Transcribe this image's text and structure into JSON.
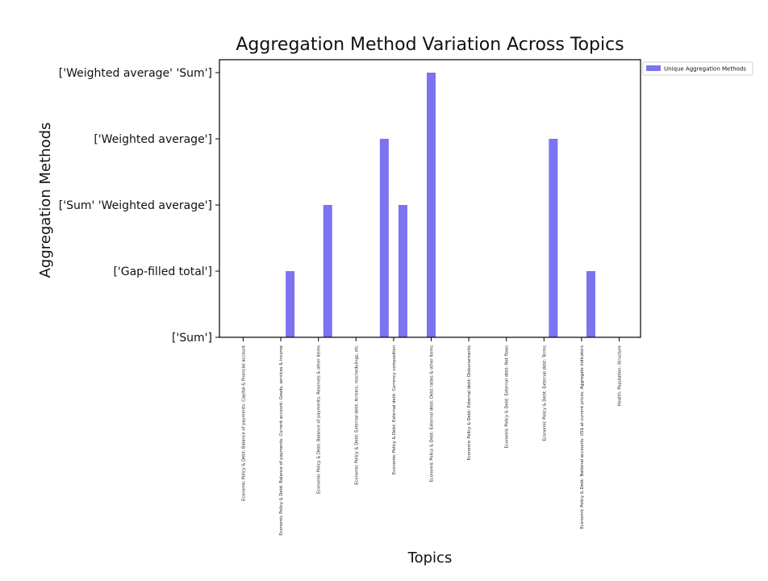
{
  "chart_data": {
    "type": "bar",
    "title": "Aggregation Method Variation Across Topics",
    "xlabel": "Topics",
    "ylabel": "Aggregation Methods",
    "y_categories": [
      "['Sum']",
      "['Gap-filled total']",
      "['Sum' 'Weighted average']",
      "['Weighted average']",
      "['Weighted average' 'Sum']"
    ],
    "categories": [
      "Economic Policy & Debt: Balance of payments: Capital & financial account",
      "Economic Policy & Debt: Balance of payments: Current account: Goods, services & income",
      "Economic Policy & Debt: Balance of payments: Reserves & other items",
      "Economic Policy & Debt: External debt: Arrears, reschedulings, etc",
      "Economic Policy & Debt: External debt: Currency composition",
      "Economic Policy & Debt: External debt: Debt ratios & other items",
      "Economic Policy & Debt: External debt: Disbursements",
      "Economic Policy & Debt: External debt: Net flows",
      "Economic Policy & Debt: External debt: Terms",
      "Economic Policy & Debt: National accounts: US$ at current prices: Aggregate indicators",
      "Health: Population: Structure"
    ],
    "series": [
      {
        "name": "Unique Aggregation Methods",
        "color": "#7b73f0",
        "values": [
          [
            "['Sum']"
          ],
          [
            "['Sum']",
            "['Gap-filled total']"
          ],
          [
            "['Sum']",
            "['Sum' 'Weighted average']"
          ],
          [
            "['Sum']"
          ],
          [
            "['Weighted average']",
            "['Sum' 'Weighted average']"
          ],
          [
            "['Weighted average' 'Sum']"
          ],
          [
            "['Sum']"
          ],
          [
            "['Sum']"
          ],
          [
            "['Sum']",
            "['Weighted average']"
          ],
          [
            "['Sum']",
            "['Gap-filled total']"
          ],
          [
            "['Sum']"
          ]
        ]
      }
    ],
    "legend_position": "outside-top-right",
    "grid": false
  }
}
